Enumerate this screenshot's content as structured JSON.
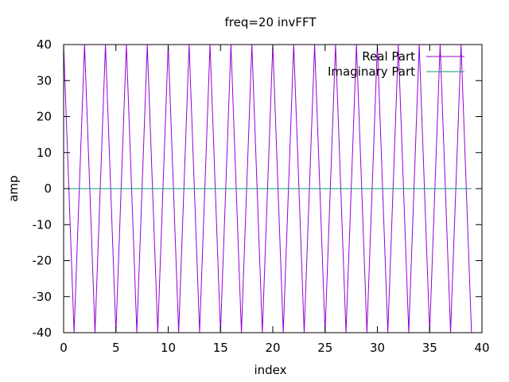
{
  "chart_data": {
    "type": "line",
    "title": "freq=20 invFFT",
    "xlabel": "index",
    "ylabel": "amp",
    "xlim": [
      0,
      40
    ],
    "ylim": [
      -40,
      40
    ],
    "xticks": [
      "0",
      "5",
      "10",
      "15",
      "20",
      "25",
      "30",
      "35",
      "40"
    ],
    "yticks": [
      "-40",
      "-30",
      "-20",
      "-10",
      "0",
      "10",
      "20",
      "30",
      "40"
    ],
    "grid": false,
    "legend_position": "top-right",
    "series": [
      {
        "name": "Real Part",
        "color": "#9400d3",
        "x": [
          0,
          1,
          2,
          3,
          4,
          5,
          6,
          7,
          8,
          9,
          10,
          11,
          12,
          13,
          14,
          15,
          16,
          17,
          18,
          19,
          20,
          21,
          22,
          23,
          24,
          25,
          26,
          27,
          28,
          29,
          30,
          31,
          32,
          33,
          34,
          35,
          36,
          37,
          38,
          39
        ],
        "values": [
          40,
          -40,
          40,
          -40,
          40,
          -40,
          40,
          -40,
          40,
          -40,
          40,
          -40,
          40,
          -40,
          40,
          -40,
          40,
          -40,
          40,
          -40,
          40,
          -40,
          40,
          -40,
          40,
          -40,
          40,
          -40,
          40,
          -40,
          40,
          -40,
          40,
          -40,
          40,
          -40,
          40,
          -40,
          40,
          -40
        ]
      },
      {
        "name": "Imaginary Part",
        "color": "#009e73",
        "x": [
          0,
          1,
          2,
          3,
          4,
          5,
          6,
          7,
          8,
          9,
          10,
          11,
          12,
          13,
          14,
          15,
          16,
          17,
          18,
          19,
          20,
          21,
          22,
          23,
          24,
          25,
          26,
          27,
          28,
          29,
          30,
          31,
          32,
          33,
          34,
          35,
          36,
          37,
          38,
          39
        ],
        "values": [
          0,
          0,
          0,
          0,
          0,
          0,
          0,
          0,
          0,
          0,
          0,
          0,
          0,
          0,
          0,
          0,
          0,
          0,
          0,
          0,
          0,
          0,
          0,
          0,
          0,
          0,
          0,
          0,
          0,
          0,
          0,
          0,
          0,
          0,
          0,
          0,
          0,
          0,
          0,
          0
        ]
      }
    ]
  }
}
